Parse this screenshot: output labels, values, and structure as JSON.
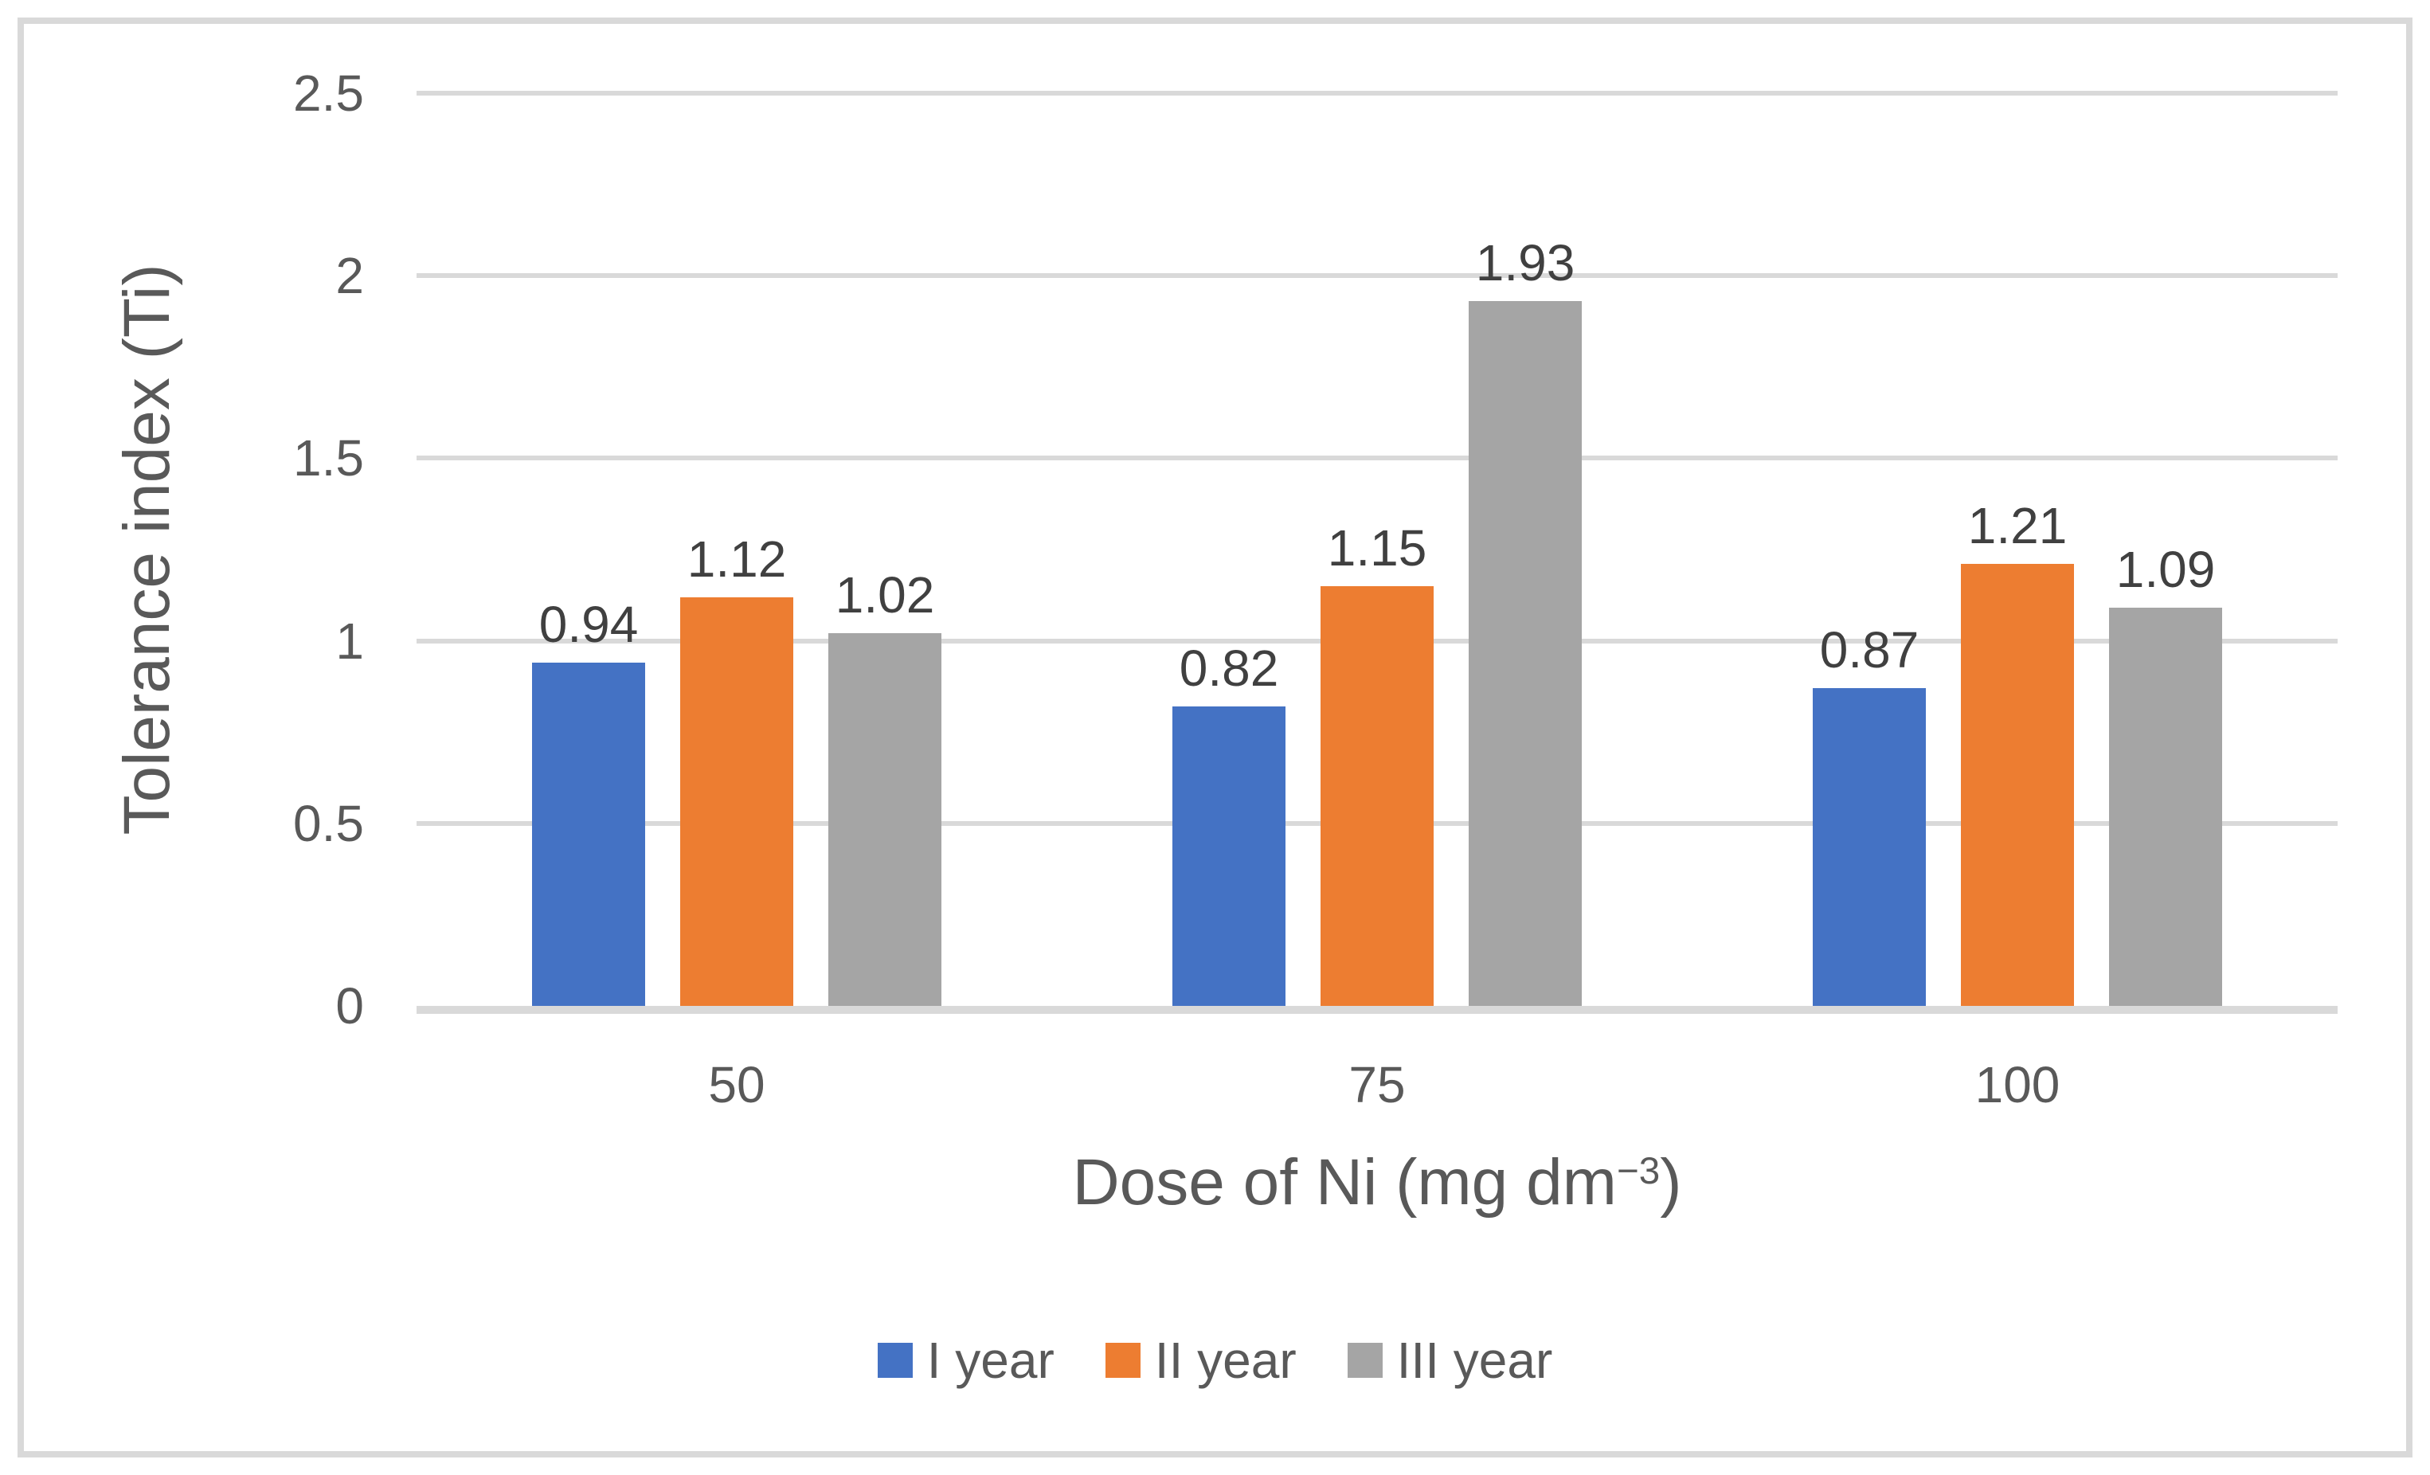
{
  "figure": {
    "background": "#FFFFFF",
    "frame_border_color": "#D9D9D9"
  },
  "chart_data": {
    "type": "bar",
    "title": "",
    "categories": [
      "50",
      "75",
      "100"
    ],
    "series": [
      {
        "name": "I year",
        "color": "#4472C4",
        "values": [
          0.94,
          0.82,
          0.87
        ],
        "labels": [
          "0.94",
          "0.82",
          "0.87"
        ]
      },
      {
        "name": "II year",
        "color": "#ED7D31",
        "values": [
          1.12,
          1.15,
          1.21
        ],
        "labels": [
          "1.12",
          "1.15",
          "1.21"
        ]
      },
      {
        "name": "III year",
        "color": "#A5A5A5",
        "values": [
          1.02,
          1.93,
          1.09
        ],
        "labels": [
          "1.02",
          "1.93",
          "1.09"
        ]
      }
    ],
    "ylabel": "Tolerance index (Ti)",
    "xlabel": "Dose of Ni (mg dm−3)",
    "xlabel_prefix": "Dose of Ni (mg dm",
    "xlabel_superscript": "−3",
    "xlabel_suffix": ")",
    "ylim": [
      0,
      2.5
    ],
    "yticks": [
      0,
      0.5,
      1,
      1.5,
      2,
      2.5
    ],
    "ytick_labels": [
      "0",
      "0.5",
      "1",
      "1.5",
      "2",
      "2.5"
    ],
    "grid": true,
    "gridline_color": "#D9D9D9",
    "axis_text_color": "#595959",
    "data_label_color": "#404040",
    "legend_position": "bottom"
  }
}
